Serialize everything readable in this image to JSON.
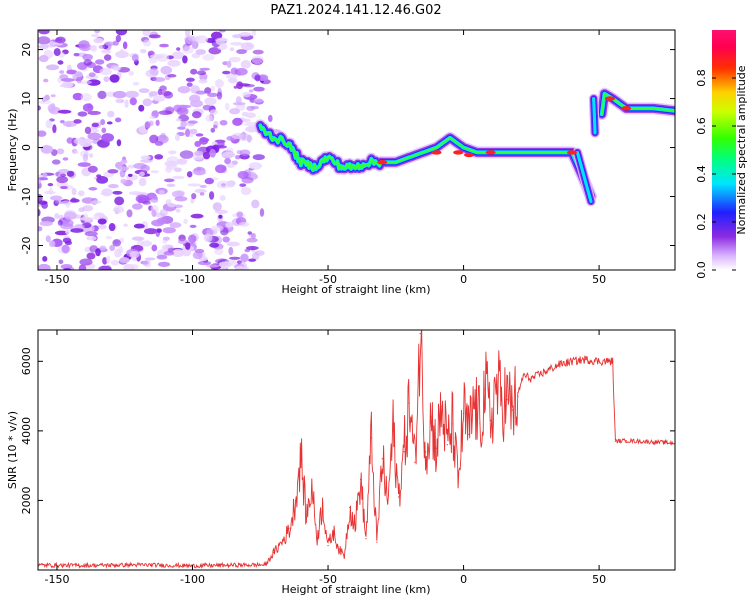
{
  "figure_title": "PAZ1.2024.141.12.46.G02",
  "chart_data": [
    {
      "type": "heatmap",
      "title": "PAZ1.2024.141.12.46.G02",
      "xlabel": "Height of straight line (km)",
      "ylabel": "Frequency (Hz)",
      "xlim": [
        -157,
        78
      ],
      "ylim": [
        -25,
        24
      ],
      "xticks": [
        -150,
        -100,
        -50,
        0,
        50
      ],
      "yticks": [
        -20,
        -10,
        0,
        10,
        20
      ],
      "colorbar": {
        "label": "Normalized spectral amplitude",
        "range": [
          0,
          1
        ],
        "ticks": [
          0.0,
          0.2,
          0.4,
          0.6,
          0.8
        ],
        "colormap": "hsv-rainbow (white→violet→blue→cyan→green→yellow→red→magenta)"
      },
      "ridge": {
        "description": "high-amplitude frequency track",
        "x": [
          -75,
          -70,
          -65,
          -60,
          -55,
          -50,
          -45,
          -40,
          -35,
          -30,
          -25,
          -20,
          -15,
          -10,
          -5,
          0,
          5,
          10,
          20,
          30,
          40,
          44,
          47,
          52,
          55,
          60,
          70,
          78
        ],
        "y": [
          4,
          2,
          1,
          -3,
          -4,
          -2,
          -4,
          -4,
          -3,
          -3,
          -3,
          -2,
          -1,
          0,
          2,
          0,
          -1,
          -1,
          -1,
          -1,
          -1,
          -6,
          -10,
          11,
          10,
          8,
          8,
          7.5
        ]
      },
      "grid": false
    },
    {
      "type": "line",
      "xlabel": "Height of straight line (km)",
      "ylabel": "SNR (10 * v/v)",
      "xlim": [
        -157,
        78
      ],
      "ylim": [
        0,
        6900
      ],
      "xticks": [
        -150,
        -100,
        -50,
        0,
        50
      ],
      "yticks": [
        2000,
        4000,
        6000
      ],
      "series": [
        {
          "color": "#e63232",
          "x": [
            -157,
            -140,
            -120,
            -100,
            -85,
            -73,
            -70,
            -67,
            -64,
            -62,
            -60,
            -58,
            -56,
            -54,
            -52,
            -50,
            -48,
            -46,
            -44,
            -42,
            -40,
            -38,
            -36,
            -34,
            -32,
            -30,
            -28,
            -26,
            -24,
            -22,
            -20,
            -18,
            -16,
            -14,
            -12,
            -10,
            -8,
            -6,
            -4,
            -2,
            0,
            2,
            4,
            6,
            8,
            10,
            12,
            14,
            16,
            18,
            20,
            22,
            25,
            30,
            35,
            40,
            45,
            50,
            55,
            56,
            60,
            65,
            70,
            78
          ],
          "y": [
            140,
            130,
            150,
            120,
            140,
            150,
            500,
            800,
            1200,
            2000,
            3300,
            1500,
            2400,
            900,
            1900,
            700,
            1100,
            600,
            400,
            1800,
            1300,
            2600,
            900,
            3800,
            800,
            3200,
            1900,
            4000,
            2100,
            3400,
            4800,
            3100,
            6800,
            3400,
            4400,
            3500,
            4700,
            3600,
            4200,
            2500,
            4500,
            3900,
            4800,
            4200,
            5200,
            4300,
            5300,
            4900,
            4900,
            4600,
            5000,
            5600,
            5500,
            5700,
            5900,
            6000,
            6050,
            6000,
            6000,
            3700,
            3720,
            3700,
            3680,
            3650
          ]
        }
      ],
      "grid": false
    }
  ]
}
